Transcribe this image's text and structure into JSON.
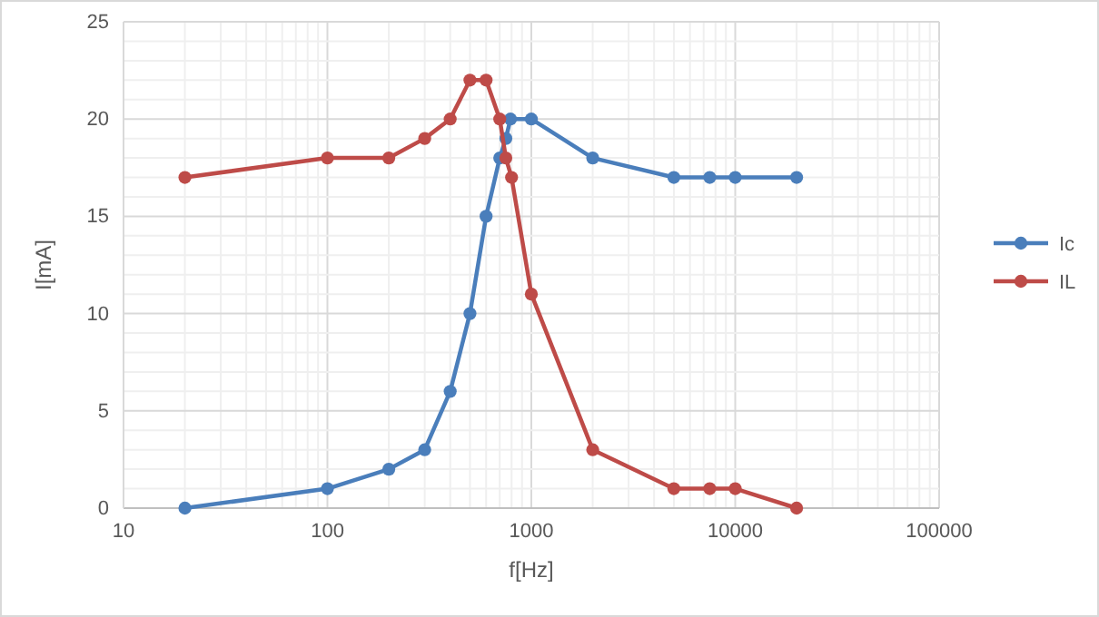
{
  "chart_data": {
    "type": "line",
    "xlabel": "f[Hz]",
    "ylabel": "I[mA]",
    "log": "x",
    "xlim": [
      10,
      100000
    ],
    "xticks": [
      10,
      100,
      1000,
      10000,
      100000
    ],
    "ylim": [
      0,
      25
    ],
    "yticks": [
      0,
      5,
      10,
      15,
      20,
      25
    ],
    "grid": true,
    "legend": "right",
    "marker": "circle",
    "line_style": "solid",
    "series": [
      {
        "name": "Ic",
        "color": "#4a7ebb",
        "x": [
          20,
          100,
          200,
          300,
          400,
          500,
          600,
          700,
          750,
          790,
          1000,
          2000,
          5000,
          7500,
          10000,
          20000
        ],
        "values": [
          0,
          1,
          2,
          3,
          6,
          10,
          15,
          18,
          19,
          20,
          20,
          18,
          17,
          17,
          17,
          17
        ]
      },
      {
        "name": "IL",
        "color": "#be4b48",
        "x": [
          20,
          100,
          200,
          300,
          400,
          500,
          600,
          700,
          750,
          800,
          1000,
          2000,
          5000,
          7500,
          10000,
          20000
        ],
        "values": [
          17,
          18,
          18,
          19,
          20,
          22,
          22,
          20,
          18,
          17,
          11,
          3,
          1,
          1,
          1,
          0
        ]
      }
    ]
  }
}
